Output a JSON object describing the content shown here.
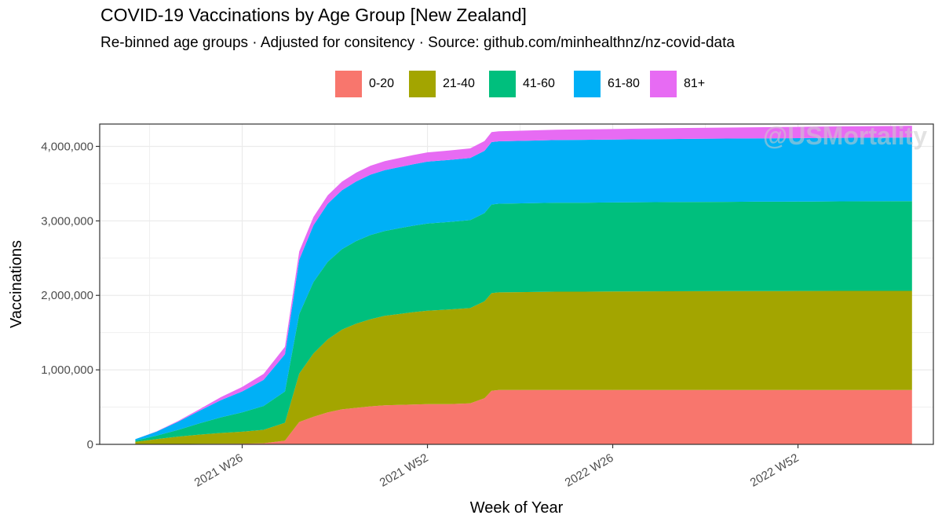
{
  "chart_data": {
    "type": "area",
    "stacked": true,
    "title": "COVID-19 Vaccinations by Age Group [New Zealand]",
    "subtitle": "Re-binned age groups · Adjusted for consitency · Source: github.com/minhealthnz/nz-covid-data",
    "xlabel": "Week of Year",
    "ylabel": "Vaccinations",
    "watermark": "@USMortality",
    "legend_position": "top",
    "grid": true,
    "x_tick_labels": [
      "2021 W26",
      "2021 W52",
      "2022 W26",
      "2022 W52"
    ],
    "x_tick_weeks": [
      26,
      52,
      78,
      104
    ],
    "x_range_weeks": [
      6,
      123
    ],
    "ylim": [
      0,
      4300000
    ],
    "y_ticks": [
      0,
      1000000,
      2000000,
      3000000,
      4000000
    ],
    "y_tick_labels": [
      "0",
      "1,000,000",
      "2,000,000",
      "3,000,000",
      "4,000,000"
    ],
    "weeks": [
      11,
      14,
      17,
      20,
      23,
      26,
      29,
      32,
      34,
      36,
      38,
      40,
      42,
      44,
      46,
      48,
      50,
      52,
      55,
      58,
      60,
      61,
      62,
      66,
      70,
      74,
      78,
      82,
      86,
      90,
      94,
      98,
      102,
      106,
      110,
      114,
      118,
      120
    ],
    "series": [
      {
        "name": "0-20",
        "color": "#F8766D",
        "values": [
          0,
          2000,
          4000,
          6000,
          8000,
          10000,
          15000,
          50000,
          300000,
          370000,
          430000,
          470000,
          490000,
          510000,
          525000,
          530000,
          535000,
          540000,
          540000,
          550000,
          620000,
          720000,
          730000,
          730000,
          730000,
          730000,
          730000,
          730000,
          730000,
          730000,
          730000,
          730000,
          730000,
          730000,
          730000,
          730000,
          730000,
          730000
        ]
      },
      {
        "name": "21-40",
        "color": "#A3A500",
        "values": [
          35000,
          70000,
          100000,
          125000,
          145000,
          160000,
          180000,
          240000,
          650000,
          850000,
          980000,
          1070000,
          1130000,
          1170000,
          1200000,
          1220000,
          1240000,
          1255000,
          1270000,
          1280000,
          1300000,
          1310000,
          1310000,
          1315000,
          1320000,
          1320000,
          1322000,
          1324000,
          1325000,
          1326000,
          1327000,
          1328000,
          1328000,
          1329000,
          1330000,
          1330000,
          1330000,
          1330000
        ]
      },
      {
        "name": "41-60",
        "color": "#00BF7D",
        "values": [
          15000,
          45000,
          90000,
          150000,
          210000,
          260000,
          320000,
          420000,
          800000,
          960000,
          1040000,
          1080000,
          1110000,
          1130000,
          1140000,
          1150000,
          1160000,
          1170000,
          1175000,
          1180000,
          1185000,
          1190000,
          1190000,
          1192000,
          1193000,
          1194000,
          1195000,
          1196000,
          1197000,
          1198000,
          1199000,
          1200000,
          1200000,
          1201000,
          1202000,
          1203000,
          1204000,
          1205000
        ]
      },
      {
        "name": "61-80",
        "color": "#00B0F6",
        "values": [
          20000,
          55000,
          110000,
          170000,
          230000,
          280000,
          350000,
          500000,
          730000,
          760000,
          780000,
          790000,
          800000,
          810000,
          815000,
          820000,
          825000,
          830000,
          832000,
          834000,
          836000,
          838000,
          838000,
          840000,
          842000,
          844000,
          845000,
          846000,
          847000,
          848000,
          849000,
          850000,
          851000,
          852000,
          853000,
          854000,
          855000,
          856000
        ]
      },
      {
        "name": "81+",
        "color": "#E76BF3",
        "values": [
          0,
          3000,
          10000,
          20000,
          40000,
          60000,
          80000,
          100000,
          110000,
          112000,
          114000,
          116000,
          118000,
          120000,
          122000,
          123000,
          124000,
          125000,
          127000,
          129000,
          131000,
          133000,
          134000,
          136000,
          138000,
          140000,
          141000,
          143000,
          145000,
          146000,
          148000,
          149000,
          151000,
          152000,
          153000,
          154000,
          155000,
          156000
        ]
      }
    ]
  }
}
